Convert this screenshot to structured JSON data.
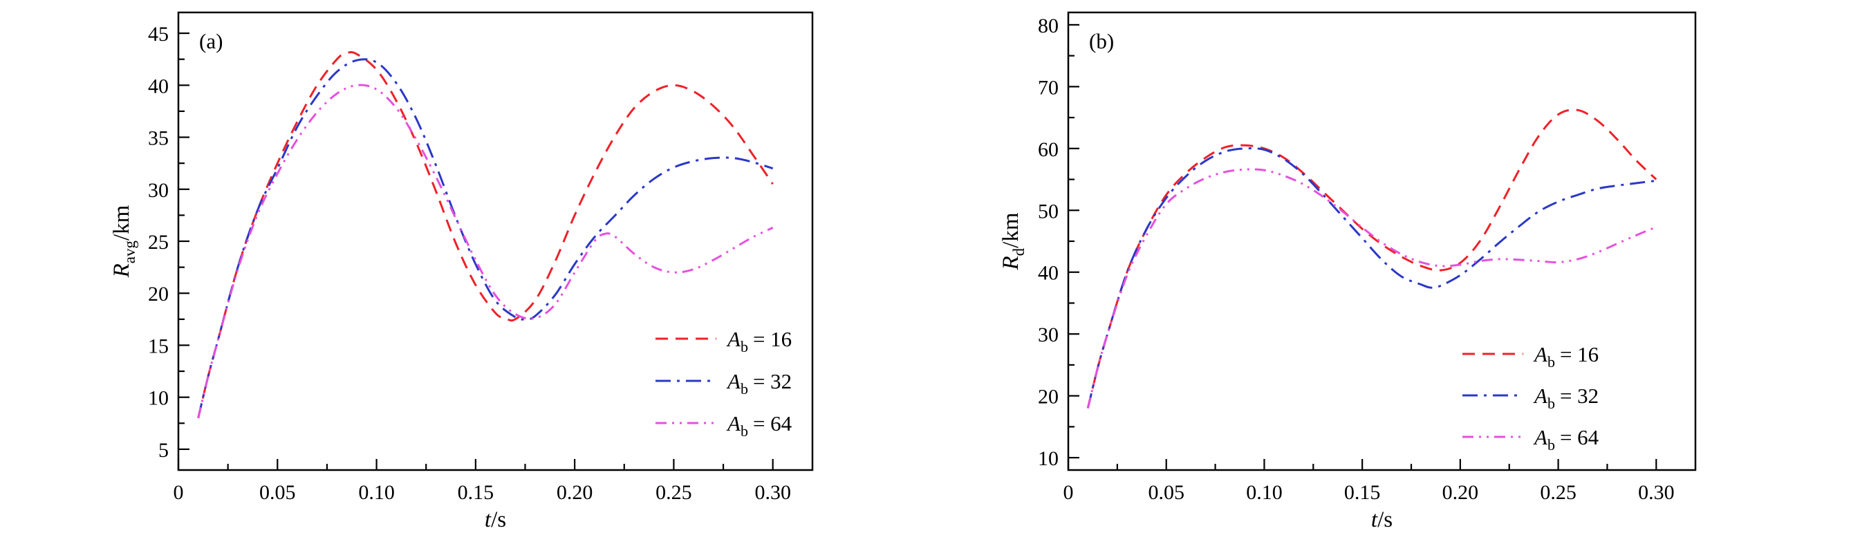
{
  "figure": {
    "background": "#ffffff",
    "axis_color": "#000000"
  },
  "chart_data": [
    {
      "type": "line",
      "panel": "(a)",
      "xlabel": {
        "var": "t",
        "rest": "/s"
      },
      "ylabel": {
        "var": "R",
        "sub": "avg",
        "rest": "/km"
      },
      "xlim": [
        0,
        0.32
      ],
      "ylim": [
        3,
        47
      ],
      "grid": false,
      "legend_position": "lower right",
      "xticks": {
        "values": [
          0,
          0.05,
          0.1,
          0.15,
          0.2,
          0.25,
          0.3
        ],
        "labels": [
          "0",
          "0.05",
          "0.10",
          "0.15",
          "0.20",
          "0.25",
          "0.30"
        ]
      },
      "yticks": {
        "values": [
          5,
          10,
          15,
          20,
          25,
          30,
          35,
          40,
          45
        ],
        "labels": [
          "5",
          "10",
          "15",
          "20",
          "25",
          "30",
          "35",
          "40",
          "45"
        ]
      },
      "x_minor_step": 0.025,
      "y_minor_step": 2.5,
      "series": [
        {
          "label": {
            "var": "A",
            "sub": "b",
            "rest": "= 16"
          },
          "color": "#ee2228",
          "dash": "dashed",
          "x": [
            0.01,
            0.015,
            0.02,
            0.03,
            0.04,
            0.05,
            0.06,
            0.07,
            0.08,
            0.085,
            0.09,
            0.1,
            0.11,
            0.12,
            0.13,
            0.14,
            0.15,
            0.16,
            0.165,
            0.17,
            0.18,
            0.19,
            0.2,
            0.21,
            0.22,
            0.23,
            0.24,
            0.25,
            0.26,
            0.27,
            0.28,
            0.29,
            0.3
          ],
          "y": [
            8,
            12,
            15.5,
            22.5,
            28,
            32.5,
            36.5,
            40,
            42.5,
            43.1,
            43,
            41.5,
            38.5,
            34.5,
            29.8,
            24.8,
            20.8,
            18.1,
            17.6,
            17.5,
            19.3,
            23,
            27.5,
            31.5,
            35,
            37.8,
            39.4,
            40,
            39.4,
            38,
            36,
            33.3,
            30.5
          ]
        },
        {
          "label": {
            "var": "A",
            "sub": "b",
            "rest": "= 32"
          },
          "color": "#2b38c8",
          "dash": "dashdot",
          "x": [
            0.01,
            0.015,
            0.02,
            0.03,
            0.04,
            0.05,
            0.06,
            0.07,
            0.08,
            0.09,
            0.1,
            0.11,
            0.12,
            0.13,
            0.14,
            0.15,
            0.16,
            0.17,
            0.175,
            0.18,
            0.19,
            0.2,
            0.21,
            0.22,
            0.23,
            0.24,
            0.25,
            0.26,
            0.27,
            0.28,
            0.29,
            0.3
          ],
          "y": [
            8,
            12,
            15.5,
            22.5,
            28,
            32,
            36,
            39,
            41.3,
            42.4,
            42.2,
            40.2,
            36.8,
            32.3,
            27.3,
            22.8,
            19.3,
            17.7,
            17.5,
            17.8,
            19.8,
            22.8,
            25.4,
            27.4,
            29.4,
            31,
            32.1,
            32.7,
            33,
            33,
            32.6,
            32
          ]
        },
        {
          "label": {
            "var": "A",
            "sub": "b",
            "rest": "= 64"
          },
          "color": "#e551dd",
          "dash": "dashdotdot",
          "x": [
            0.01,
            0.015,
            0.02,
            0.03,
            0.04,
            0.05,
            0.06,
            0.07,
            0.08,
            0.09,
            0.1,
            0.11,
            0.12,
            0.13,
            0.14,
            0.15,
            0.16,
            0.17,
            0.18,
            0.19,
            0.2,
            0.21,
            0.215,
            0.22,
            0.23,
            0.24,
            0.25,
            0.26,
            0.27,
            0.28,
            0.29,
            0.3
          ],
          "y": [
            8,
            12,
            15.5,
            22.3,
            27.6,
            31.5,
            34.8,
            37.4,
            39.2,
            40,
            39.6,
            37.8,
            34.8,
            31.2,
            27.2,
            23.2,
            19.8,
            18,
            17.6,
            18.9,
            22,
            25,
            25.7,
            25.5,
            23.8,
            22.5,
            22,
            22.3,
            23.2,
            24.3,
            25.4,
            26.3
          ]
        }
      ]
    },
    {
      "type": "line",
      "panel": "(b)",
      "xlabel": {
        "var": "t",
        "rest": "/s"
      },
      "ylabel": {
        "var": "R",
        "sub": "d",
        "rest": "/km"
      },
      "xlim": [
        0,
        0.32
      ],
      "ylim": [
        8,
        82
      ],
      "grid": false,
      "legend_position": "lower right",
      "xticks": {
        "values": [
          0,
          0.05,
          0.1,
          0.15,
          0.2,
          0.25,
          0.3
        ],
        "labels": [
          "0",
          "0.05",
          "0.10",
          "0.15",
          "0.20",
          "0.25",
          "0.30"
        ]
      },
      "yticks": {
        "values": [
          10,
          20,
          30,
          40,
          50,
          60,
          70,
          80
        ],
        "labels": [
          "10",
          "20",
          "30",
          "40",
          "50",
          "60",
          "70",
          "80"
        ]
      },
      "x_minor_step": 0.025,
      "y_minor_step": 5,
      "series": [
        {
          "label": {
            "var": "A",
            "sub": "b",
            "rest": "= 16"
          },
          "color": "#ee2228",
          "dash": "dashed",
          "x": [
            0.01,
            0.015,
            0.02,
            0.03,
            0.04,
            0.05,
            0.06,
            0.07,
            0.08,
            0.09,
            0.1,
            0.11,
            0.12,
            0.13,
            0.14,
            0.15,
            0.16,
            0.17,
            0.18,
            0.19,
            0.2,
            0.21,
            0.22,
            0.23,
            0.24,
            0.25,
            0.26,
            0.27,
            0.28,
            0.29,
            0.3
          ],
          "y": [
            18,
            24.5,
            30,
            40,
            47,
            52.5,
            56,
            58.5,
            60.2,
            60.5,
            60,
            58.5,
            56,
            53,
            50,
            47,
            44.5,
            42.5,
            41,
            40.3,
            41.5,
            45,
            50.5,
            56.5,
            62,
            65.5,
            66.2,
            64.5,
            61.5,
            58,
            55
          ]
        },
        {
          "label": {
            "var": "A",
            "sub": "b",
            "rest": "= 32"
          },
          "color": "#2b38c8",
          "dash": "dashdot",
          "x": [
            0.01,
            0.015,
            0.02,
            0.03,
            0.04,
            0.05,
            0.06,
            0.07,
            0.08,
            0.09,
            0.1,
            0.11,
            0.12,
            0.13,
            0.14,
            0.15,
            0.16,
            0.17,
            0.18,
            0.185,
            0.19,
            0.2,
            0.21,
            0.22,
            0.23,
            0.24,
            0.25,
            0.26,
            0.27,
            0.28,
            0.29,
            0.3
          ],
          "y": [
            18,
            24.5,
            30,
            40,
            47,
            52,
            55.5,
            58,
            59.5,
            60,
            59.8,
            58.3,
            55.8,
            52.5,
            49,
            45.5,
            42,
            39.3,
            38,
            37.5,
            37.8,
            39.5,
            42,
            44.8,
            47.4,
            49.8,
            51.4,
            52.5,
            53.5,
            54,
            54.4,
            54.8
          ]
        },
        {
          "label": {
            "var": "A",
            "sub": "b",
            "rest": "= 64"
          },
          "color": "#e551dd",
          "dash": "dashdotdot",
          "x": [
            0.01,
            0.015,
            0.02,
            0.03,
            0.04,
            0.05,
            0.06,
            0.07,
            0.08,
            0.09,
            0.1,
            0.11,
            0.12,
            0.13,
            0.14,
            0.15,
            0.16,
            0.17,
            0.18,
            0.19,
            0.2,
            0.21,
            0.22,
            0.23,
            0.24,
            0.25,
            0.26,
            0.27,
            0.28,
            0.29,
            0.3
          ],
          "y": [
            18,
            24.5,
            30,
            39.5,
            46,
            51,
            53.5,
            55.2,
            56.2,
            56.6,
            56.5,
            55.6,
            54.2,
            52.2,
            49.8,
            47.2,
            44.8,
            42.9,
            41.6,
            41,
            41.2,
            41.8,
            42.1,
            42,
            41.8,
            41.6,
            42.1,
            43.2,
            44.6,
            46,
            47.3
          ]
        }
      ]
    }
  ]
}
